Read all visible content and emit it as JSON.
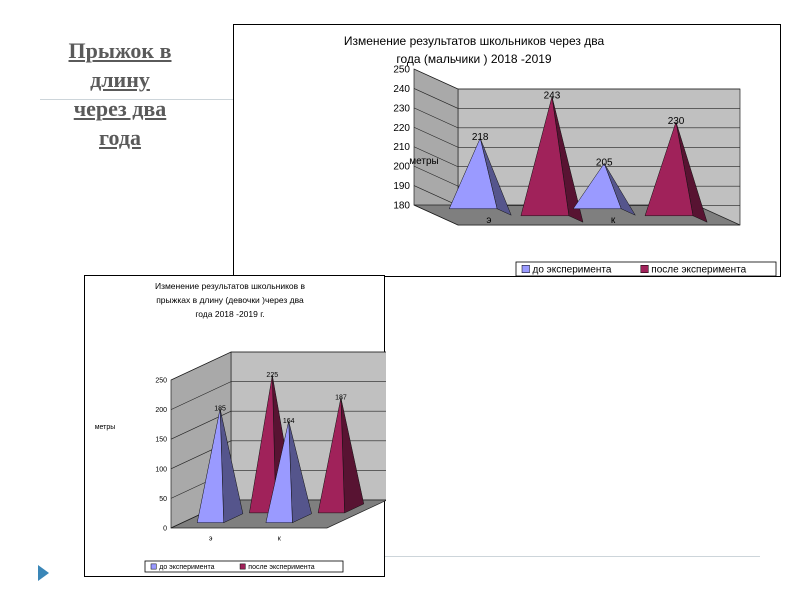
{
  "slide": {
    "title_lines": [
      "Прыжок в",
      "длину",
      "через два",
      "года"
    ]
  },
  "colors": {
    "before": "#9a9aff",
    "after": "#a0225a",
    "wall": "#c0c0c0",
    "floor": "#7f7f7f"
  },
  "chart_data": [
    {
      "type": "bar",
      "style": "3d-pyramid",
      "title_lines": [
        "Изменение результатов  школьников  через два",
        "года  (мальчики  ) 2018 -2019"
      ],
      "ylabel": "метры",
      "xlabel": "",
      "categories": [
        "э",
        "к"
      ],
      "series": [
        {
          "name": "до эксперимента",
          "values": [
            218,
            205
          ]
        },
        {
          "name": "после эксперимента",
          "values": [
            243,
            230
          ]
        }
      ],
      "data_labels": [
        [
          "218",
          "205"
        ],
        [
          "243",
          "230"
        ]
      ],
      "ylim": [
        180,
        250
      ],
      "yticks": [
        180,
        190,
        200,
        210,
        220,
        230,
        240,
        250
      ],
      "grid": true,
      "legend": "bottom-right"
    },
    {
      "type": "bar",
      "style": "3d-pyramid",
      "title_lines": [
        "Изменение результатов школьников в",
        "прыжках  в длину        (девочки    )через два",
        "года   2018   -2019  г."
      ],
      "ylabel": "метры",
      "xlabel": "",
      "categories": [
        "э",
        "к"
      ],
      "series": [
        {
          "name": "до эксперимента",
          "values": [
            185,
            164
          ]
        },
        {
          "name": "после эксперимента",
          "values": [
            225,
            187
          ]
        }
      ],
      "data_labels": [
        [
          "185",
          "164"
        ],
        [
          "225",
          "187"
        ]
      ],
      "ylim": [
        0,
        250
      ],
      "yticks": [
        0,
        50,
        100,
        150,
        200,
        250
      ],
      "grid": true,
      "legend": "bottom"
    }
  ]
}
